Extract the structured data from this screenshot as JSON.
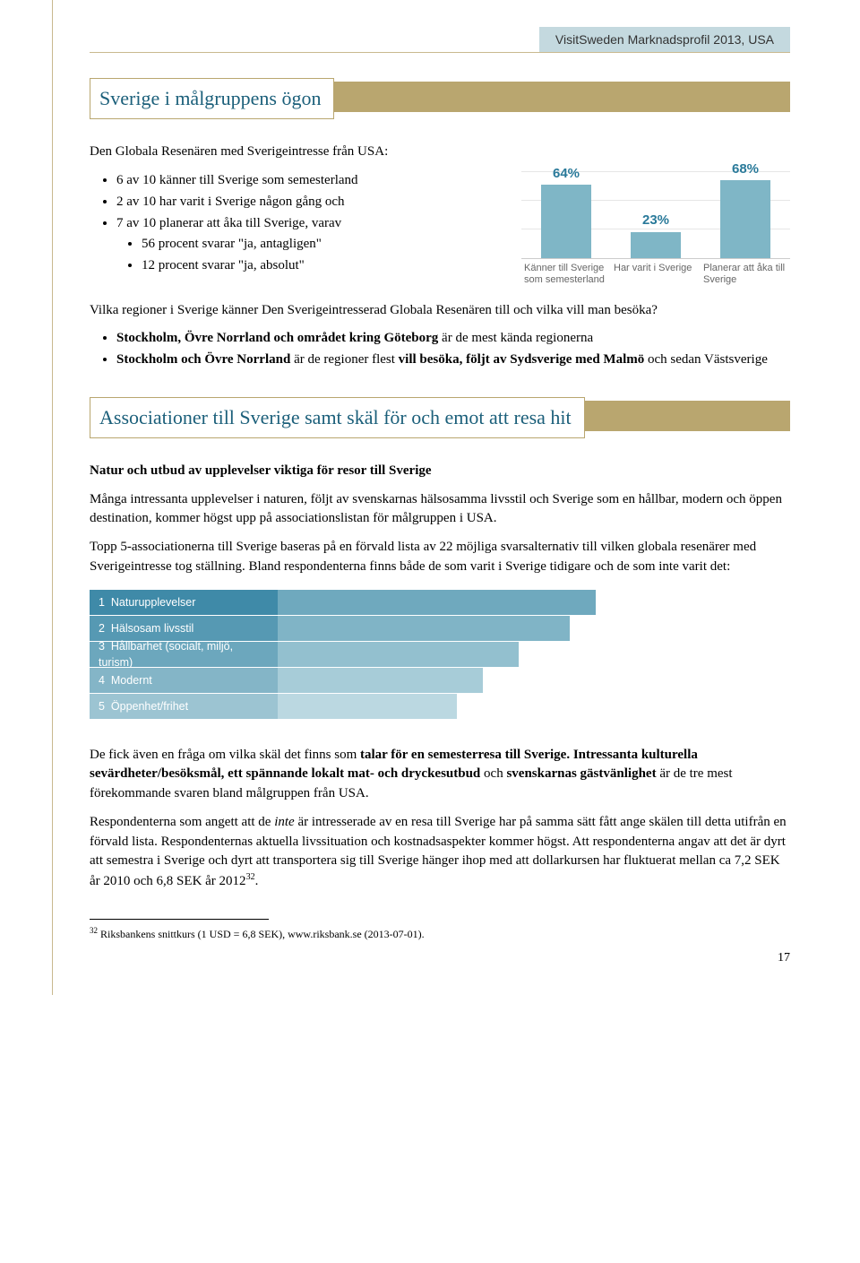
{
  "header": {
    "text": "VisitSweden Marknadsprofil 2013, USA"
  },
  "section1": {
    "title": "Sverige i målgruppens ögon",
    "intro": "Den Globala Resenären med Sverigeintresse från USA:",
    "bullets": [
      "6 av 10 känner till Sverige som semesterland",
      "2 av 10 har varit i Sverige någon gång och",
      "7 av 10 planerar att åka till Sverige, varav",
      "56 procent svarar \"ja, antagligen\"",
      "12 procent svarar \"ja, absolut\""
    ],
    "chart": {
      "type": "bar",
      "bar_color": "#7fb6c6",
      "value_color": "#2a7a9a",
      "max": 100,
      "bars": [
        {
          "value": 64,
          "label_pct": "64%",
          "label": "Känner till Sverige som semesterland"
        },
        {
          "value": 23,
          "label_pct": "23%",
          "label": "Har varit i Sverige"
        },
        {
          "value": 68,
          "label_pct": "68%",
          "label": "Planerar att åka till Sverige"
        }
      ]
    },
    "q_regions": "Vilka regioner i Sverige känner Den Sverigeintresserad Globala Resenären till och vilka vill man besöka?",
    "region_bullets": [
      "<b>Stockholm, Övre Norrland och området kring Göteborg</b> är de mest kända regionerna",
      "<b>Stockholm och Övre Norrland</b> är de regioner flest <b>vill besöka, följt av Sydsverige med Malmö</b> och sedan Västsverige"
    ]
  },
  "section2": {
    "title": "Associationer till Sverige samt skäl för och emot att resa hit",
    "sub": "Natur och utbud av upplevelser viktiga för resor till Sverige",
    "p1": "Många intressanta upplevelser i naturen, följt av svenskarnas hälsosamma livsstil och Sverige som en hållbar, modern och öppen destination, kommer högst upp på associationslistan för målgruppen i USA.",
    "p2": "Topp 5-associationerna till Sverige baseras på en förvald lista av 22 möjliga svarsalternativ till vilken globala resenärer med Sverigeintresse  tog ställning. Bland respondenterna finns både de som varit i Sverige tidigare och de som inte varit det:",
    "ranked": {
      "type": "bar",
      "label_width": 210,
      "max": 100,
      "items": [
        {
          "n": "1",
          "label": "Naturupplevelser",
          "value": 62,
          "label_bg": "#3f8aa8",
          "bar_bg": "#6fa9be"
        },
        {
          "n": "2",
          "label": "Hälsosam livsstil",
          "value": 57,
          "label_bg": "#5699b3",
          "bar_bg": "#80b4c6"
        },
        {
          "n": "3",
          "label": "Hållbarhet (socialt, miljö, turism)",
          "value": 47,
          "label_bg": "#6ca7bd",
          "bar_bg": "#93c0cf"
        },
        {
          "n": "4",
          "label": "Modernt",
          "value": 40,
          "label_bg": "#84b5c7",
          "bar_bg": "#a7ccd8"
        },
        {
          "n": "5",
          "label": "Öppenhet/frihet",
          "value": 35,
          "label_bg": "#9cc4d2",
          "bar_bg": "#bbd8e1"
        }
      ]
    },
    "p3": "De fick även en fråga om vilka skäl det finns som <b>talar för en semesterresa till Sverige. Intressanta kulturella sevärdheter/besöksmål, ett spännande lokalt mat- och dryckesutbud</b> och <b>svenskarnas gästvänlighet</b> är de  tre mest förekommande svaren bland målgruppen från USA.",
    "p4": "Respondenterna som angett att de <i>inte</i> är intresserade av en resa till Sverige har på samma sätt fått ange skälen till detta utifrån en förvald lista. Respondenternas aktuella livssituation och kostnadsaspekter kommer högst. Att respondenterna angav att det är dyrt att semestra i Sverige och dyrt att transportera sig till Sverige hänger ihop med att dollarkursen har fluktuerat mellan ca 7,2 SEK år 2010 och 6,8 SEK år 2012<sup>32</sup>."
  },
  "footnote": {
    "n": "32",
    "text": "Riksbankens snittkurs (1 USD = 6,8 SEK), www.riksbank.se (2013-07-01)."
  },
  "page_num": "17"
}
